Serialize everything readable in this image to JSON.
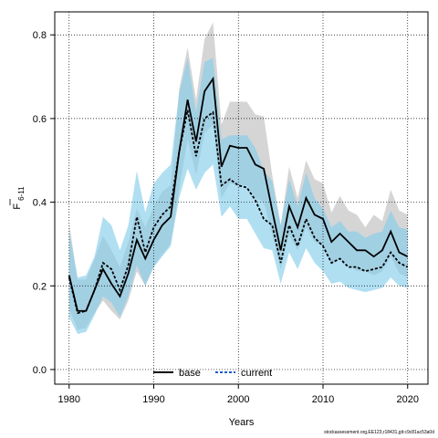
{
  "chart_data": {
    "type": "line",
    "title": "",
    "xlabel": "Years",
    "ylabel_main": "F",
    "ylabel_sub": "6-11",
    "xlim": [
      1978.3,
      2022.4
    ],
    "ylim": [
      -0.035,
      0.855
    ],
    "x_ticks": [
      1980,
      1990,
      2000,
      2010,
      2020
    ],
    "y_ticks": [
      0.0,
      0.2,
      0.4,
      0.6,
      0.8
    ],
    "y_tick_labels": [
      "0.0",
      "0.2",
      "0.4",
      "0.6",
      "0.8"
    ],
    "grid": true,
    "legend_position": "bottom-center",
    "x": [
      1980,
      1981,
      1982,
      1983,
      1984,
      1985,
      1986,
      1987,
      1988,
      1989,
      1990,
      1991,
      1992,
      1993,
      1994,
      1995,
      1996,
      1997,
      1998,
      1999,
      2000,
      2001,
      2002,
      2003,
      2004,
      2005,
      2006,
      2007,
      2008,
      2009,
      2010,
      2011,
      2012,
      2013,
      2014,
      2015,
      2016,
      2017,
      2018,
      2019,
      2020
    ],
    "series": [
      {
        "name": "base",
        "color": "#000000",
        "band_color": "#bebebe",
        "dash": "solid",
        "values": [
          0.225,
          0.14,
          0.14,
          0.19,
          0.24,
          0.205,
          0.175,
          0.23,
          0.31,
          0.265,
          0.31,
          0.345,
          0.365,
          0.52,
          0.645,
          0.545,
          0.665,
          0.695,
          0.485,
          0.535,
          0.53,
          0.53,
          0.49,
          0.48,
          0.38,
          0.285,
          0.39,
          0.34,
          0.41,
          0.37,
          0.36,
          0.305,
          0.325,
          0.305,
          0.285,
          0.285,
          0.27,
          0.285,
          0.33,
          0.28,
          0.27
        ],
        "lower": [
          0.145,
          0.095,
          0.1,
          0.135,
          0.165,
          0.14,
          0.12,
          0.165,
          0.235,
          0.2,
          0.245,
          0.275,
          0.3,
          0.43,
          0.55,
          0.465,
          0.565,
          0.585,
          0.41,
          0.445,
          0.44,
          0.44,
          0.41,
          0.4,
          0.32,
          0.24,
          0.32,
          0.285,
          0.34,
          0.305,
          0.295,
          0.25,
          0.265,
          0.25,
          0.235,
          0.235,
          0.225,
          0.235,
          0.27,
          0.23,
          0.22
        ],
        "upper": [
          0.35,
          0.215,
          0.215,
          0.265,
          0.32,
          0.285,
          0.245,
          0.305,
          0.385,
          0.34,
          0.39,
          0.425,
          0.44,
          0.67,
          0.77,
          0.645,
          0.79,
          0.83,
          0.585,
          0.64,
          0.64,
          0.64,
          0.61,
          0.605,
          0.465,
          0.345,
          0.485,
          0.41,
          0.5,
          0.455,
          0.445,
          0.375,
          0.415,
          0.38,
          0.37,
          0.34,
          0.37,
          0.355,
          0.43,
          0.38,
          0.37
        ]
      },
      {
        "name": "current",
        "color": "#1a5cc8",
        "band_color": "#87ceeb",
        "dash": "dashed",
        "values": [
          0.22,
          0.135,
          0.14,
          0.19,
          0.255,
          0.24,
          0.19,
          0.25,
          0.365,
          0.28,
          0.34,
          0.37,
          0.39,
          0.52,
          0.62,
          0.51,
          0.6,
          0.615,
          0.44,
          0.455,
          0.44,
          0.435,
          0.405,
          0.36,
          0.345,
          0.255,
          0.345,
          0.295,
          0.36,
          0.315,
          0.295,
          0.255,
          0.265,
          0.245,
          0.245,
          0.235,
          0.24,
          0.245,
          0.28,
          0.255,
          0.245
        ],
        "lower": [
          0.125,
          0.085,
          0.09,
          0.13,
          0.175,
          0.16,
          0.125,
          0.175,
          0.25,
          0.2,
          0.245,
          0.27,
          0.295,
          0.41,
          0.48,
          0.43,
          0.47,
          0.49,
          0.365,
          0.39,
          0.36,
          0.36,
          0.325,
          0.29,
          0.285,
          0.205,
          0.28,
          0.24,
          0.29,
          0.255,
          0.235,
          0.205,
          0.21,
          0.195,
          0.19,
          0.185,
          0.19,
          0.195,
          0.22,
          0.2,
          0.195
        ],
        "upper": [
          0.33,
          0.22,
          0.225,
          0.27,
          0.365,
          0.345,
          0.285,
          0.345,
          0.475,
          0.375,
          0.445,
          0.47,
          0.49,
          0.66,
          0.745,
          0.615,
          0.735,
          0.745,
          0.55,
          0.56,
          0.56,
          0.56,
          0.53,
          0.475,
          0.45,
          0.345,
          0.455,
          0.39,
          0.47,
          0.41,
          0.385,
          0.34,
          0.355,
          0.33,
          0.33,
          0.315,
          0.325,
          0.33,
          0.38,
          0.34,
          0.335
        ]
      }
    ]
  },
  "footer_text": "stockassessment.org,EE123,r18431,git:c9c81ac53a0d"
}
